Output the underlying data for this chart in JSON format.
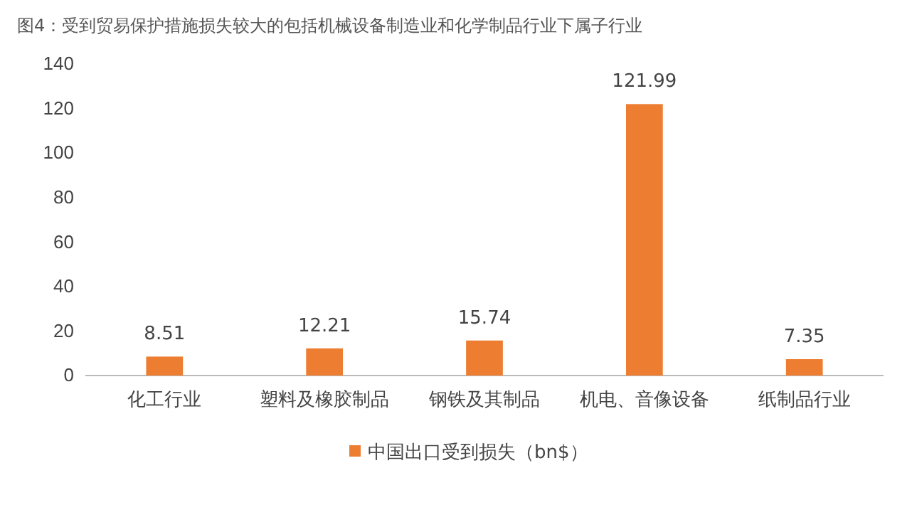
{
  "chart_data": {
    "type": "bar",
    "title": "图4：受到贸易保护措施损失较大的包括机械设备制造业和化学制品行业下属子行业",
    "categories": [
      "化工行业",
      "塑料及橡胶制品",
      "钢铁及其制品",
      "机电、音像设备",
      "纸制品行业"
    ],
    "series": [
      {
        "name": "中国出口受到损失（bn$）",
        "color": "#ed7d31",
        "values": [
          8.51,
          12.21,
          15.74,
          121.99,
          7.35
        ]
      }
    ],
    "ylim": [
      0,
      140
    ],
    "yticks": [
      0,
      20,
      40,
      60,
      80,
      100,
      120,
      140
    ],
    "grid": false,
    "legend": "bottom",
    "data_labels": true
  }
}
